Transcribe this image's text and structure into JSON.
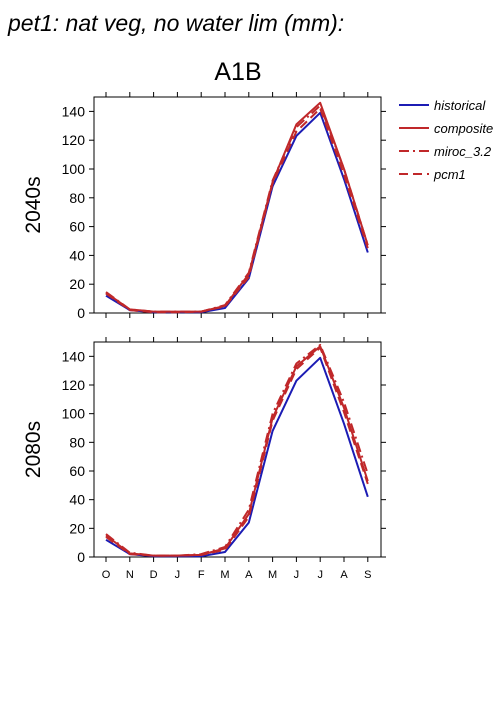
{
  "title": "pet1: nat veg, no water lim (mm):",
  "scenario": "A1B",
  "months": [
    "O",
    "N",
    "D",
    "J",
    "F",
    "M",
    "A",
    "M",
    "J",
    "J",
    "A",
    "S"
  ],
  "legend": [
    {
      "name": "historical",
      "color": "#1c1cb4",
      "dash": "none"
    },
    {
      "name": "composite",
      "color": "#c0282a",
      "dash": "none"
    },
    {
      "name": "miroc_3.2",
      "color": "#c0282a",
      "dash": "dashdot"
    },
    {
      "name": "pcm1",
      "color": "#c0282a",
      "dash": "dashed"
    }
  ],
  "chart_data": [
    {
      "type": "line",
      "title": "A1B",
      "ylabel": "2040s",
      "categories": [
        "O",
        "N",
        "D",
        "J",
        "F",
        "M",
        "A",
        "M",
        "J",
        "J",
        "A",
        "S"
      ],
      "ylim": [
        0,
        150
      ],
      "yticks": [
        0,
        20,
        40,
        60,
        80,
        100,
        120,
        140
      ],
      "series": [
        {
          "name": "historical",
          "values": [
            12,
            2,
            0.5,
            0.5,
            0.5,
            3.5,
            24,
            88,
            123,
            139,
            93,
            42
          ]
        },
        {
          "name": "composite",
          "values": [
            14,
            2.5,
            1,
            1,
            1,
            5,
            27,
            91,
            131,
            146,
            100,
            47
          ]
        },
        {
          "name": "miroc_3.2",
          "values": [
            14.5,
            2.5,
            1,
            1,
            1,
            5.5,
            28,
            92,
            129,
            144,
            100,
            47
          ]
        },
        {
          "name": "pcm1",
          "values": [
            13.5,
            2,
            0.5,
            0.5,
            1,
            4.5,
            25,
            90,
            126,
            142,
            96,
            45
          ]
        }
      ]
    },
    {
      "type": "line",
      "title": "",
      "ylabel": "2080s",
      "categories": [
        "O",
        "N",
        "D",
        "J",
        "F",
        "M",
        "A",
        "M",
        "J",
        "J",
        "A",
        "S"
      ],
      "ylim": [
        0,
        150
      ],
      "yticks": [
        0,
        20,
        40,
        60,
        80,
        100,
        120,
        140
      ],
      "series": [
        {
          "name": "historical",
          "values": [
            12,
            2,
            0.5,
            0.5,
            0.5,
            3.5,
            24,
            88,
            123,
            139,
            93,
            42
          ]
        },
        {
          "name": "composite",
          "values": [
            15,
            2.5,
            1,
            1,
            1.5,
            6,
            30,
            97,
            133,
            147,
            104,
            53
          ]
        },
        {
          "name": "miroc_3.2",
          "values": [
            16,
            3,
            1,
            1,
            2,
            7,
            33,
            100,
            135,
            148,
            108,
            58
          ]
        },
        {
          "name": "pcm1",
          "values": [
            14,
            2,
            1,
            1,
            1.5,
            5,
            28,
            95,
            131,
            146,
            101,
            51
          ]
        }
      ]
    }
  ]
}
